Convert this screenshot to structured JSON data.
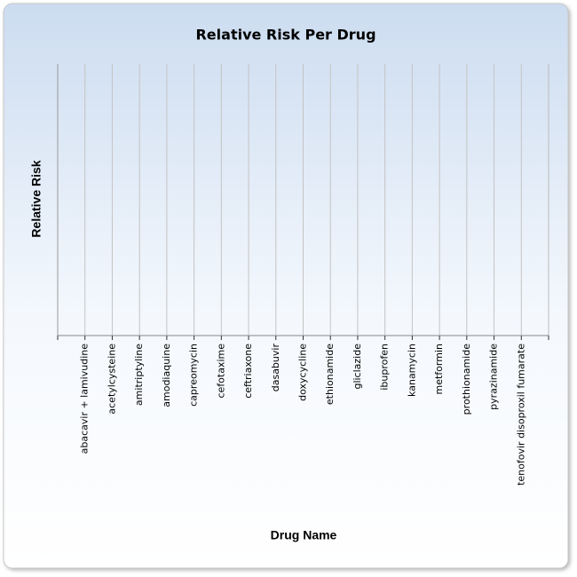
{
  "chart_data": {
    "type": "bar",
    "title": "Relative Risk Per Drug",
    "x_label": "Drug Name",
    "y_label": "Relative Risk",
    "categories": [
      "abacavir + lamivudine",
      "acetylcysteine",
      "amitriptyline",
      "amodiaquine",
      "capreomycin",
      "cefotaxime",
      "ceftriaxone",
      "dasabuvir",
      "doxycycline",
      "ethionamide",
      "gliclazide",
      "ibuprofen",
      "kanamycin",
      "metformin",
      "prothionamide",
      "pyrazinamide",
      "tenofovir disoproxil fumarate"
    ],
    "grid": true
  }
}
